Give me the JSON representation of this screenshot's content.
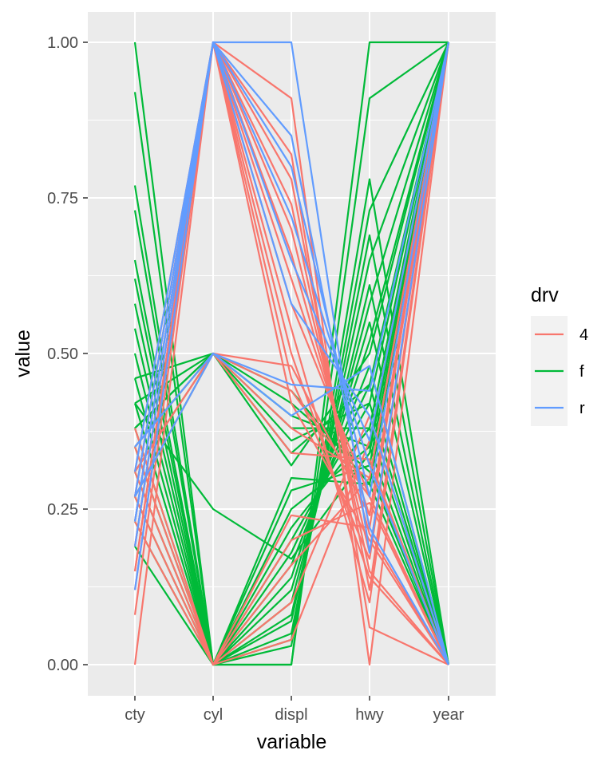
{
  "chart_data": {
    "type": "line",
    "subtype": "parallel-coordinates",
    "xlabel": "variable",
    "ylabel": "value",
    "categories": [
      "cty",
      "cyl",
      "displ",
      "hwy",
      "year"
    ],
    "y_ticks": [
      "0.00",
      "0.25",
      "0.50",
      "0.75",
      "1.00"
    ],
    "ylim": [
      0,
      1
    ],
    "grid": true,
    "legend": {
      "title": "drv",
      "placement": "right",
      "items": [
        {
          "label": "4",
          "color": "#F8766D"
        },
        {
          "label": "f",
          "color": "#00BA38"
        },
        {
          "label": "r",
          "color": "#619CFF"
        }
      ]
    },
    "series": [
      {
        "group": "f",
        "values": [
          1.0,
          0.0,
          0.0,
          1.0,
          1.0
        ]
      },
      {
        "group": "f",
        "values": [
          0.92,
          0.0,
          0.0,
          0.91,
          1.0
        ]
      },
      {
        "group": "f",
        "values": [
          0.77,
          0.0,
          0.03,
          0.78,
          0.0
        ]
      },
      {
        "group": "f",
        "values": [
          0.73,
          0.0,
          0.04,
          0.73,
          1.0
        ]
      },
      {
        "group": "f",
        "values": [
          0.65,
          0.0,
          0.05,
          0.69,
          0.0
        ]
      },
      {
        "group": "f",
        "values": [
          0.62,
          0.0,
          0.07,
          0.65,
          1.0
        ]
      },
      {
        "group": "f",
        "values": [
          0.58,
          0.0,
          0.08,
          0.61,
          0.0
        ]
      },
      {
        "group": "f",
        "values": [
          0.54,
          0.0,
          0.1,
          0.58,
          1.0
        ]
      },
      {
        "group": "f",
        "values": [
          0.5,
          0.0,
          0.12,
          0.55,
          0.0
        ]
      },
      {
        "group": "f",
        "values": [
          0.46,
          0.0,
          0.14,
          0.52,
          1.0
        ]
      },
      {
        "group": "f",
        "values": [
          0.42,
          0.0,
          0.16,
          0.48,
          0.0
        ]
      },
      {
        "group": "f",
        "values": [
          0.38,
          0.0,
          0.18,
          0.45,
          1.0
        ]
      },
      {
        "group": "f",
        "values": [
          0.35,
          0.0,
          0.2,
          0.42,
          0.0
        ]
      },
      {
        "group": "f",
        "values": [
          0.31,
          0.0,
          0.22,
          0.38,
          1.0
        ]
      },
      {
        "group": "f",
        "values": [
          0.27,
          0.0,
          0.25,
          0.35,
          0.0
        ]
      },
      {
        "group": "f",
        "values": [
          0.23,
          0.0,
          0.28,
          0.32,
          1.0
        ]
      },
      {
        "group": "f",
        "values": [
          0.19,
          0.0,
          0.3,
          0.29,
          0.0
        ]
      },
      {
        "group": "f",
        "values": [
          0.46,
          0.5,
          0.32,
          0.5,
          1.0
        ]
      },
      {
        "group": "f",
        "values": [
          0.42,
          0.5,
          0.34,
          0.45,
          0.0
        ]
      },
      {
        "group": "f",
        "values": [
          0.38,
          0.5,
          0.36,
          0.42,
          1.0
        ]
      },
      {
        "group": "f",
        "values": [
          0.35,
          0.5,
          0.38,
          0.38,
          0.0
        ]
      },
      {
        "group": "f",
        "values": [
          0.31,
          0.5,
          0.4,
          0.35,
          1.0
        ]
      },
      {
        "group": "f",
        "values": [
          0.27,
          0.5,
          0.42,
          0.31,
          0.0
        ]
      },
      {
        "group": "f",
        "values": [
          0.38,
          0.5,
          0.44,
          0.29,
          1.0
        ]
      },
      {
        "group": "f",
        "values": [
          0.42,
          0.25,
          0.17,
          0.34,
          1.0
        ]
      },
      {
        "group": "4",
        "values": [
          0.0,
          1.0,
          0.91,
          0.0,
          1.0
        ]
      },
      {
        "group": "4",
        "values": [
          0.08,
          1.0,
          0.82,
          0.06,
          0.0
        ]
      },
      {
        "group": "4",
        "values": [
          0.12,
          1.0,
          0.78,
          0.12,
          1.0
        ]
      },
      {
        "group": "4",
        "values": [
          0.15,
          1.0,
          0.74,
          0.15,
          0.0
        ]
      },
      {
        "group": "4",
        "values": [
          0.19,
          1.0,
          0.7,
          0.18,
          1.0
        ]
      },
      {
        "group": "4",
        "values": [
          0.23,
          1.0,
          0.66,
          0.21,
          0.0
        ]
      },
      {
        "group": "4",
        "values": [
          0.27,
          1.0,
          0.62,
          0.24,
          1.0
        ]
      },
      {
        "group": "4",
        "values": [
          0.31,
          1.0,
          0.58,
          0.27,
          0.0
        ]
      },
      {
        "group": "4",
        "values": [
          0.15,
          1.0,
          0.54,
          0.1,
          1.0
        ]
      },
      {
        "group": "4",
        "values": [
          0.19,
          1.0,
          0.5,
          0.14,
          0.0
        ]
      },
      {
        "group": "4",
        "values": [
          0.23,
          1.0,
          0.46,
          0.17,
          1.0
        ]
      },
      {
        "group": "4",
        "values": [
          0.27,
          1.0,
          0.42,
          0.2,
          0.0
        ]
      },
      {
        "group": "4",
        "values": [
          0.31,
          0.5,
          0.48,
          0.24,
          1.0
        ]
      },
      {
        "group": "4",
        "values": [
          0.35,
          0.5,
          0.44,
          0.27,
          0.0
        ]
      },
      {
        "group": "4",
        "values": [
          0.27,
          0.5,
          0.38,
          0.3,
          1.0
        ]
      },
      {
        "group": "4",
        "values": [
          0.31,
          0.5,
          0.34,
          0.33,
          0.0
        ]
      },
      {
        "group": "4",
        "values": [
          0.35,
          0.0,
          0.04,
          0.36,
          1.0
        ]
      },
      {
        "group": "4",
        "values": [
          0.38,
          0.0,
          0.1,
          0.4,
          0.0
        ]
      },
      {
        "group": "4",
        "values": [
          0.31,
          0.0,
          0.16,
          0.3,
          1.0
        ]
      },
      {
        "group": "4",
        "values": [
          0.27,
          0.0,
          0.2,
          0.26,
          0.0
        ]
      },
      {
        "group": "4",
        "values": [
          0.23,
          0.0,
          0.24,
          0.22,
          1.0
        ]
      },
      {
        "group": "r",
        "values": [
          0.12,
          1.0,
          1.0,
          0.18,
          1.0
        ]
      },
      {
        "group": "r",
        "values": [
          0.19,
          1.0,
          0.85,
          0.22,
          0.0
        ]
      },
      {
        "group": "r",
        "values": [
          0.23,
          1.0,
          0.8,
          0.27,
          1.0
        ]
      },
      {
        "group": "r",
        "values": [
          0.27,
          1.0,
          0.72,
          0.32,
          0.0
        ]
      },
      {
        "group": "r",
        "values": [
          0.31,
          1.0,
          0.65,
          0.36,
          1.0
        ]
      },
      {
        "group": "r",
        "values": [
          0.23,
          1.0,
          0.58,
          0.4,
          0.0
        ]
      },
      {
        "group": "r",
        "values": [
          0.27,
          0.5,
          0.45,
          0.44,
          1.0
        ]
      },
      {
        "group": "r",
        "values": [
          0.35,
          0.5,
          0.4,
          0.48,
          0.0
        ]
      }
    ]
  }
}
